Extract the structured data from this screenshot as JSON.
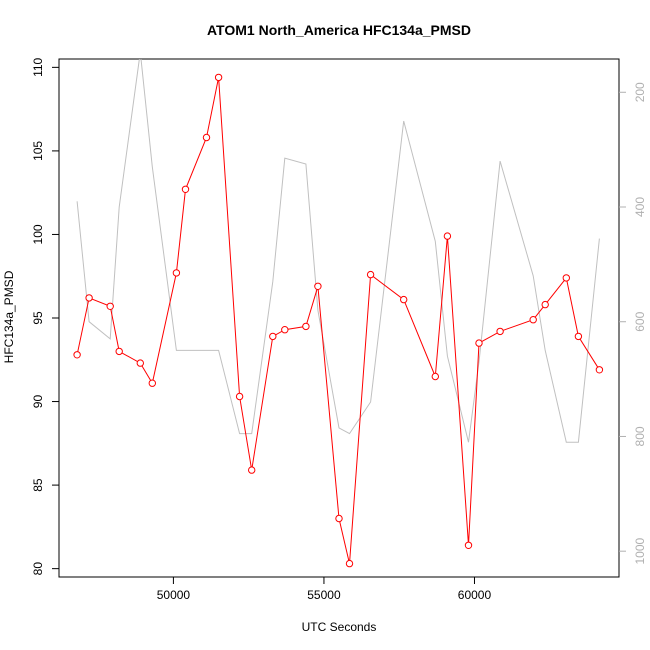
{
  "chart_data": {
    "type": "line",
    "title": "ATOM1 North_America HFC134a_PMSD",
    "xlabel": "UTC Seconds",
    "ylabel": "HFC134a_PMSD",
    "xlim": [
      46200,
      64800
    ],
    "ylim": [
      79.5,
      110.5
    ],
    "y2lim": [
      1045,
      142
    ],
    "x_ticks": [
      50000,
      55000,
      60000
    ],
    "y_ticks": [
      80,
      85,
      90,
      95,
      100,
      105,
      110
    ],
    "y2_ticks": [
      200,
      400,
      600,
      800,
      1000
    ],
    "grid": false,
    "series": [
      {
        "axis": "left",
        "color": "#ff0000",
        "marker": "open-circle",
        "x": [
          46800,
          47200,
          47900,
          48200,
          48900,
          49300,
          50100,
          50400,
          51100,
          51500,
          52200,
          52600,
          53300,
          53700,
          54400,
          54800,
          55500,
          55850,
          56550,
          57650,
          58700,
          59100,
          59800,
          60150,
          60850,
          61950,
          62350,
          63050,
          63450,
          64150
        ],
        "y": [
          92.8,
          96.2,
          95.7,
          93.0,
          92.3,
          91.1,
          97.7,
          102.7,
          105.8,
          109.4,
          90.3,
          85.9,
          93.9,
          94.3,
          94.5,
          96.9,
          83.0,
          80.3,
          97.6,
          96.1,
          91.5,
          99.9,
          81.4,
          93.5,
          94.2,
          94.9,
          95.8,
          97.4,
          93.9,
          91.9
        ]
      },
      {
        "axis": "right",
        "color": "#c0c0c0",
        "marker": "none",
        "x": [
          46800,
          47200,
          47900,
          48200,
          48900,
          49300,
          50100,
          50400,
          51100,
          51500,
          52200,
          52600,
          53300,
          53700,
          54400,
          54800,
          55500,
          55850,
          56550,
          57650,
          58700,
          59100,
          59800,
          60150,
          60850,
          61950,
          62350,
          63050,
          63450,
          64150
        ],
        "y": [
          390,
          600,
          630,
          400,
          130,
          330,
          650,
          650,
          650,
          650,
          795,
          795,
          530,
          315,
          325,
          580,
          785,
          795,
          740,
          250,
          460,
          660,
          810,
          670,
          320,
          520,
          650,
          810,
          810,
          455
        ]
      }
    ]
  }
}
